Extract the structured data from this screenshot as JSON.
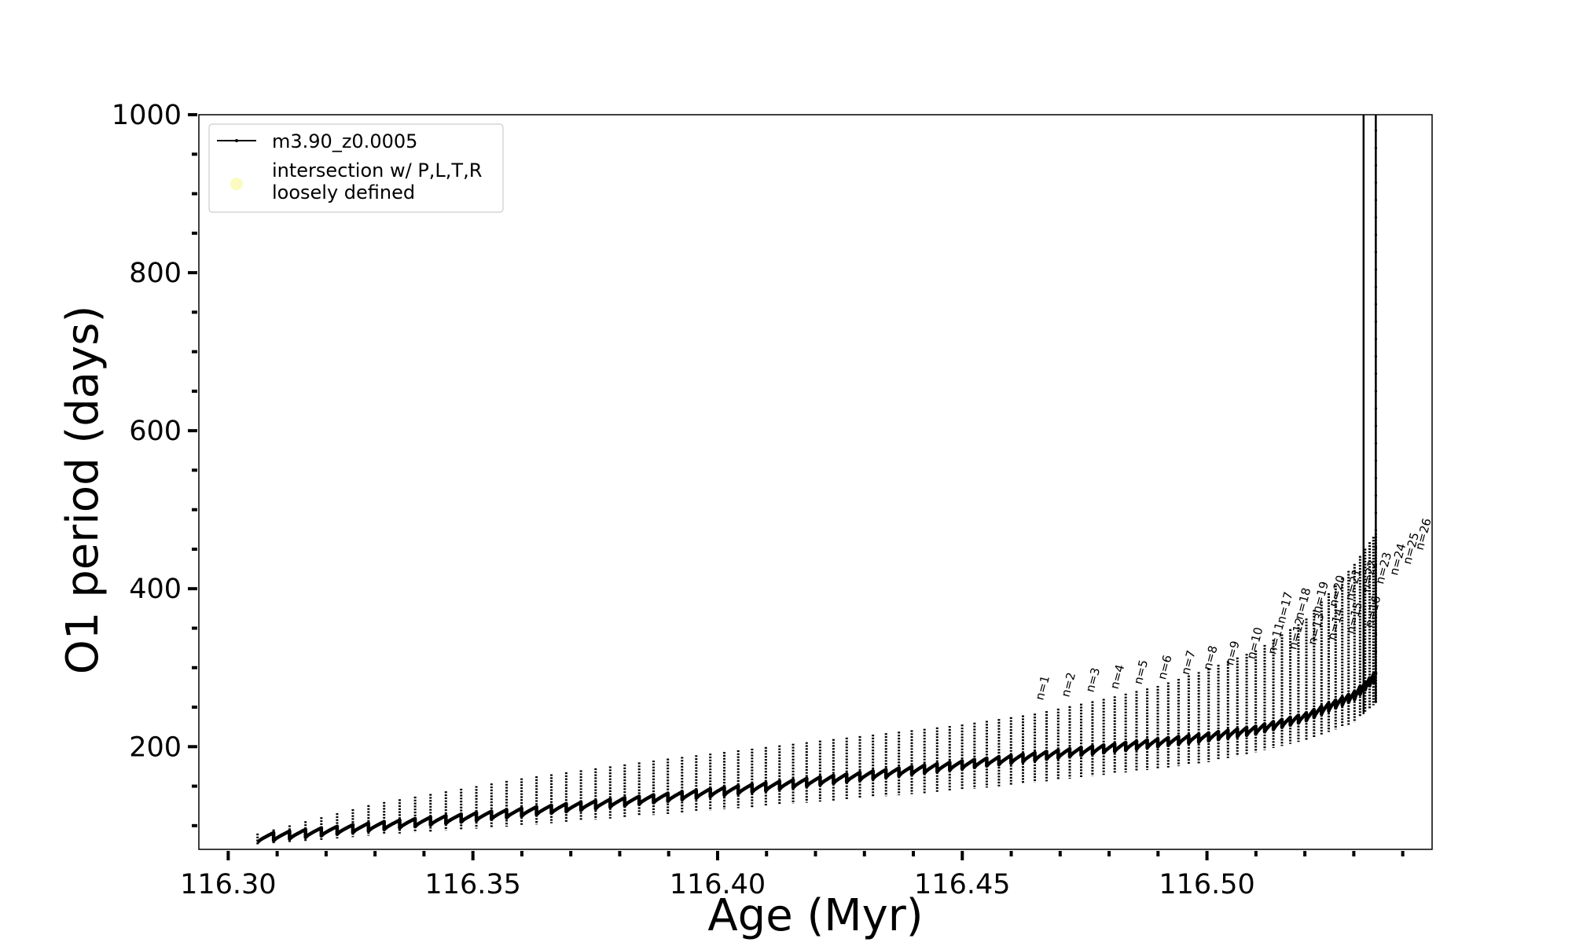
{
  "chart_data": {
    "type": "line",
    "title": "",
    "xlabel": "Age (Myr)",
    "ylabel": "O1 period (days)",
    "xlim": [
      116.294,
      116.546
    ],
    "ylim": [
      70,
      1000
    ],
    "x_ticks": [
      "116.30",
      "116.35",
      "116.40",
      "116.45",
      "116.50"
    ],
    "x_tick_values": [
      116.3,
      116.35,
      116.4,
      116.45,
      116.5
    ],
    "y_ticks": [
      "200",
      "400",
      "600",
      "800",
      "1000"
    ],
    "y_tick_values": [
      200,
      400,
      600,
      800,
      1000
    ],
    "grid": false,
    "legend_placement": "top-left",
    "legend": [
      {
        "label": "m3.90_z0.0005",
        "marker": "line-dot",
        "color": "#000000"
      },
      {
        "label": "intersection w/ P,L,T,R\nloosely defined",
        "marker": "circle",
        "color": "#fbfbc0"
      }
    ],
    "series": [
      {
        "name": "m3.90_z0.0005",
        "color": "#000000",
        "pulse_count": 95,
        "age_start": 116.306,
        "age_end": 116.5345,
        "baseline_period_points": [
          [
            116.306,
            85
          ],
          [
            116.33,
            100
          ],
          [
            116.36,
            118
          ],
          [
            116.39,
            137
          ],
          [
            116.42,
            157
          ],
          [
            116.45,
            178
          ],
          [
            116.47,
            192
          ],
          [
            116.49,
            206
          ],
          [
            116.5,
            213
          ],
          [
            116.51,
            222
          ],
          [
            116.52,
            238
          ],
          [
            116.53,
            265
          ],
          [
            116.535,
            293
          ]
        ],
        "spike_peak_points": [
          [
            116.306,
            90
          ],
          [
            116.33,
            128
          ],
          [
            116.36,
            160
          ],
          [
            116.39,
            185
          ],
          [
            116.42,
            207
          ],
          [
            116.45,
            228
          ],
          [
            116.465,
            242
          ],
          [
            116.48,
            262
          ],
          [
            116.49,
            277
          ],
          [
            116.5,
            298
          ],
          [
            116.51,
            322
          ],
          [
            116.52,
            360
          ],
          [
            116.53,
            430
          ],
          [
            116.5345,
            470
          ]
        ],
        "spike_trough_points": [
          [
            116.306,
            75
          ],
          [
            116.33,
            88
          ],
          [
            116.36,
            100
          ],
          [
            116.39,
            115
          ],
          [
            116.42,
            130
          ],
          [
            116.45,
            145
          ],
          [
            116.47,
            158
          ],
          [
            116.49,
            172
          ],
          [
            116.5,
            180
          ],
          [
            116.51,
            193
          ],
          [
            116.52,
            208
          ],
          [
            116.53,
            230
          ],
          [
            116.535,
            258
          ]
        ],
        "final_vertical_lines": [
          116.532,
          116.5345
        ]
      }
    ],
    "pulse_labels": {
      "labels": [
        "n=1",
        "n=2",
        "n=3",
        "n=4",
        "n=5",
        "n=6",
        "n=7",
        "n=8",
        "n=9",
        "n=10",
        "n=11",
        "n=12",
        "n=13",
        "n=14",
        "n=15",
        "n=16",
        "n=17",
        "n=18",
        "n=19",
        "n=20",
        "n=21",
        "n=22",
        "n=23",
        "n=24",
        "n=25",
        "n=26"
      ],
      "ages": [
        116.4665,
        116.4718,
        116.4768,
        116.4818,
        116.4866,
        116.4915,
        116.4963,
        116.5008,
        116.5053,
        116.5097,
        116.514,
        116.5182,
        116.5222,
        116.5262,
        116.53,
        116.5338,
        116.5158,
        116.5195,
        116.5231,
        116.5265,
        116.5298,
        116.533,
        116.536,
        116.5389,
        116.5416,
        116.5441
      ],
      "periods": [
        258,
        262,
        268,
        272,
        278,
        284,
        290,
        296,
        302,
        310,
        316,
        322,
        328,
        334,
        342,
        350,
        355,
        360,
        368,
        376,
        384,
        395,
        405,
        416,
        430,
        448
      ]
    }
  }
}
